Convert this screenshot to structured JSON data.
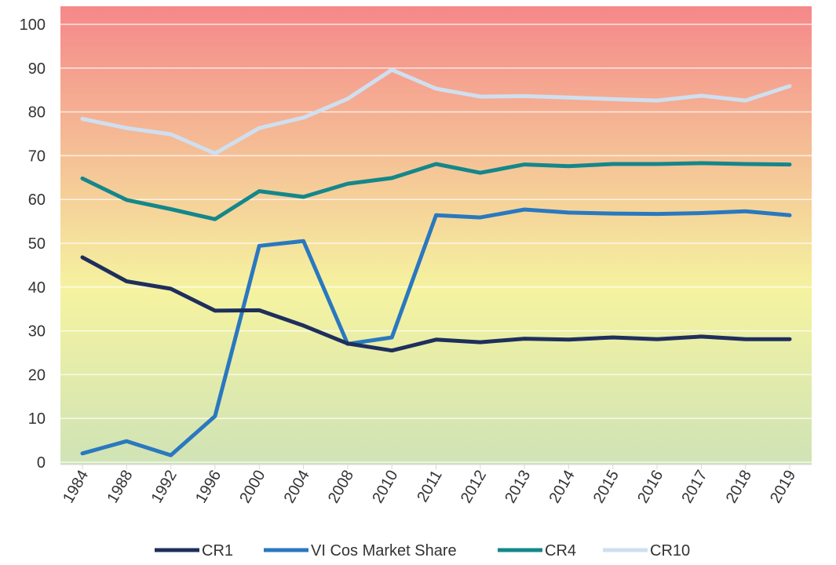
{
  "chart_data": {
    "type": "line",
    "categories": [
      "1984",
      "1988",
      "1992",
      "1996",
      "2000",
      "2004",
      "2008",
      "2010",
      "2011",
      "2012",
      "2013",
      "2014",
      "2015",
      "2016",
      "2017",
      "2018",
      "2019"
    ],
    "series": [
      {
        "name": "CR1",
        "color": "#1f2f5c",
        "values": [
          46.8,
          41.3,
          39.6,
          34.6,
          34.7,
          31.2,
          27.1,
          25.5,
          28.0,
          27.4,
          28.2,
          28.0,
          28.5,
          28.1,
          28.7,
          28.1,
          28.1
        ]
      },
      {
        "name": "VI Cos Market Share",
        "color": "#2a78bf",
        "values": [
          2.0,
          4.8,
          1.6,
          10.5,
          49.4,
          50.5,
          27.0,
          28.5,
          56.4,
          55.9,
          57.7,
          57.0,
          56.8,
          56.7,
          56.9,
          57.3,
          56.4
        ]
      },
      {
        "name": "CR4",
        "color": "#14878a",
        "values": [
          64.8,
          59.9,
          57.8,
          55.5,
          61.9,
          60.6,
          63.6,
          64.9,
          68.1,
          66.1,
          68.0,
          67.6,
          68.1,
          68.1,
          68.3,
          68.1,
          68.0
        ]
      },
      {
        "name": "CR10",
        "color": "#cfdff0",
        "values": [
          78.4,
          76.3,
          74.9,
          70.5,
          76.3,
          78.7,
          83.0,
          89.6,
          85.3,
          83.5,
          83.6,
          83.3,
          82.9,
          82.6,
          83.7,
          82.6,
          85.9
        ]
      }
    ],
    "ylim": [
      0,
      100
    ],
    "yticks": [
      "0",
      "10",
      "20",
      "30",
      "40",
      "50",
      "60",
      "70",
      "80",
      "90",
      "100"
    ],
    "grid": true,
    "legend_position": "bottom",
    "background_gradient": {
      "top": "#f5888a",
      "middle": "#f5f3a0",
      "bottom": "#cfe3b6"
    }
  }
}
